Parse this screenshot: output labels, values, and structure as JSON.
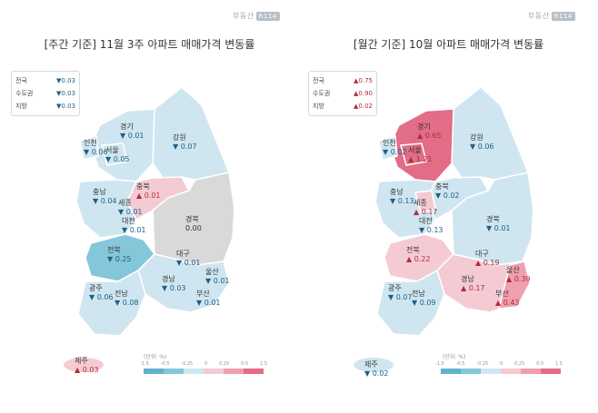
{
  "brand": {
    "name": "부동산",
    "badge": "R114"
  },
  "colors": {
    "down_strong": "#84c7d9",
    "down_light": "#cfe6f0",
    "flat": "#d9d9d9",
    "up_light": "#f4cbd3",
    "up_mid": "#ef9fae",
    "up_strong": "#e36c86",
    "down_text": "#1f5f86",
    "up_text": "#b52a3d"
  },
  "weekly": {
    "title": "[주간 기준] 11월 3주 아파트 매매가격 변동률",
    "summary": [
      {
        "label": "전국",
        "arrow": "▼",
        "value": "0.03",
        "dir": "dn"
      },
      {
        "label": "수도권",
        "arrow": "▼",
        "value": "0.03",
        "dir": "dn"
      },
      {
        "label": "지방",
        "arrow": "▼",
        "value": "0.03",
        "dir": "dn"
      }
    ],
    "regions": [
      {
        "name": "경기",
        "arrow": "▼",
        "value": "0.01",
        "dir": "dn"
      },
      {
        "name": "강원",
        "arrow": "▼",
        "value": "0.07",
        "dir": "dn"
      },
      {
        "name": "인천",
        "arrow": "▼",
        "value": "0.06",
        "dir": "dn"
      },
      {
        "name": "서울",
        "arrow": "▼",
        "value": "0.05",
        "dir": "dn"
      },
      {
        "name": "충북",
        "arrow": "▲",
        "value": "0.01",
        "dir": "up"
      },
      {
        "name": "충남",
        "arrow": "▼",
        "value": "0.04",
        "dir": "dn"
      },
      {
        "name": "세종",
        "arrow": "▼",
        "value": "0.01",
        "dir": "dn"
      },
      {
        "name": "대전",
        "arrow": "▼",
        "value": "0.01",
        "dir": "dn"
      },
      {
        "name": "경북",
        "arrow": "",
        "value": "0.00",
        "dir": "flat"
      },
      {
        "name": "전북",
        "arrow": "▼",
        "value": "0.25",
        "dir": "dn"
      },
      {
        "name": "대구",
        "arrow": "▼",
        "value": "0.01",
        "dir": "dn"
      },
      {
        "name": "울산",
        "arrow": "▼",
        "value": "0.01",
        "dir": "dn"
      },
      {
        "name": "경남",
        "arrow": "▼",
        "value": "0.03",
        "dir": "dn"
      },
      {
        "name": "광주",
        "arrow": "▼",
        "value": "0.06",
        "dir": "dn"
      },
      {
        "name": "전남",
        "arrow": "▼",
        "value": "0.08",
        "dir": "dn"
      },
      {
        "name": "부산",
        "arrow": "▼",
        "value": "0.01",
        "dir": "dn"
      },
      {
        "name": "제주",
        "arrow": "▲",
        "value": "0.03",
        "dir": "up"
      }
    ],
    "legend_unit": "(단위: %)",
    "legend_ticks": [
      "-1.5",
      "-0.5",
      "-0.25",
      "0",
      "0.25",
      "0.5",
      "1.5"
    ]
  },
  "monthly": {
    "title": "[월간 기준] 10월 아파트 매매가격 변동률",
    "summary": [
      {
        "label": "전국",
        "arrow": "▲",
        "value": "0.75",
        "dir": "up"
      },
      {
        "label": "수도권",
        "arrow": "▲",
        "value": "0.90",
        "dir": "up"
      },
      {
        "label": "지방",
        "arrow": "▲",
        "value": "0.02",
        "dir": "up"
      }
    ],
    "regions": [
      {
        "name": "경기",
        "arrow": "▲",
        "value": "0.65",
        "dir": "up"
      },
      {
        "name": "강원",
        "arrow": "▼",
        "value": "0.06",
        "dir": "dn"
      },
      {
        "name": "인천",
        "arrow": "▼",
        "value": "0.02",
        "dir": "dn"
      },
      {
        "name": "서울",
        "arrow": "▲",
        "value": "1.21",
        "dir": "up"
      },
      {
        "name": "충북",
        "arrow": "▼",
        "value": "0.02",
        "dir": "dn"
      },
      {
        "name": "충남",
        "arrow": "▼",
        "value": "0.13",
        "dir": "dn"
      },
      {
        "name": "세종",
        "arrow": "▲",
        "value": "0.17",
        "dir": "up"
      },
      {
        "name": "경북",
        "arrow": "▼",
        "value": "0.01",
        "dir": "dn"
      },
      {
        "name": "대전",
        "arrow": "▼",
        "value": "0.13",
        "dir": "dn"
      },
      {
        "name": "전북",
        "arrow": "▲",
        "value": "0.22",
        "dir": "up"
      },
      {
        "name": "대구",
        "arrow": "▲",
        "value": "0.19",
        "dir": "up"
      },
      {
        "name": "울산",
        "arrow": "▲",
        "value": "0.39",
        "dir": "up"
      },
      {
        "name": "경남",
        "arrow": "▲",
        "value": "0.17",
        "dir": "up"
      },
      {
        "name": "광주",
        "arrow": "▼",
        "value": "0.07",
        "dir": "dn"
      },
      {
        "name": "전남",
        "arrow": "▼",
        "value": "0.09",
        "dir": "dn"
      },
      {
        "name": "부산",
        "arrow": "▲",
        "value": "0.43",
        "dir": "up"
      },
      {
        "name": "제주",
        "arrow": "▼",
        "value": "0.02",
        "dir": "dn"
      }
    ],
    "legend_unit": "(단위: %)",
    "legend_ticks": [
      "-1.5",
      "-0.5",
      "-0.25",
      "0",
      "0.25",
      "0.5",
      "1.5"
    ]
  }
}
